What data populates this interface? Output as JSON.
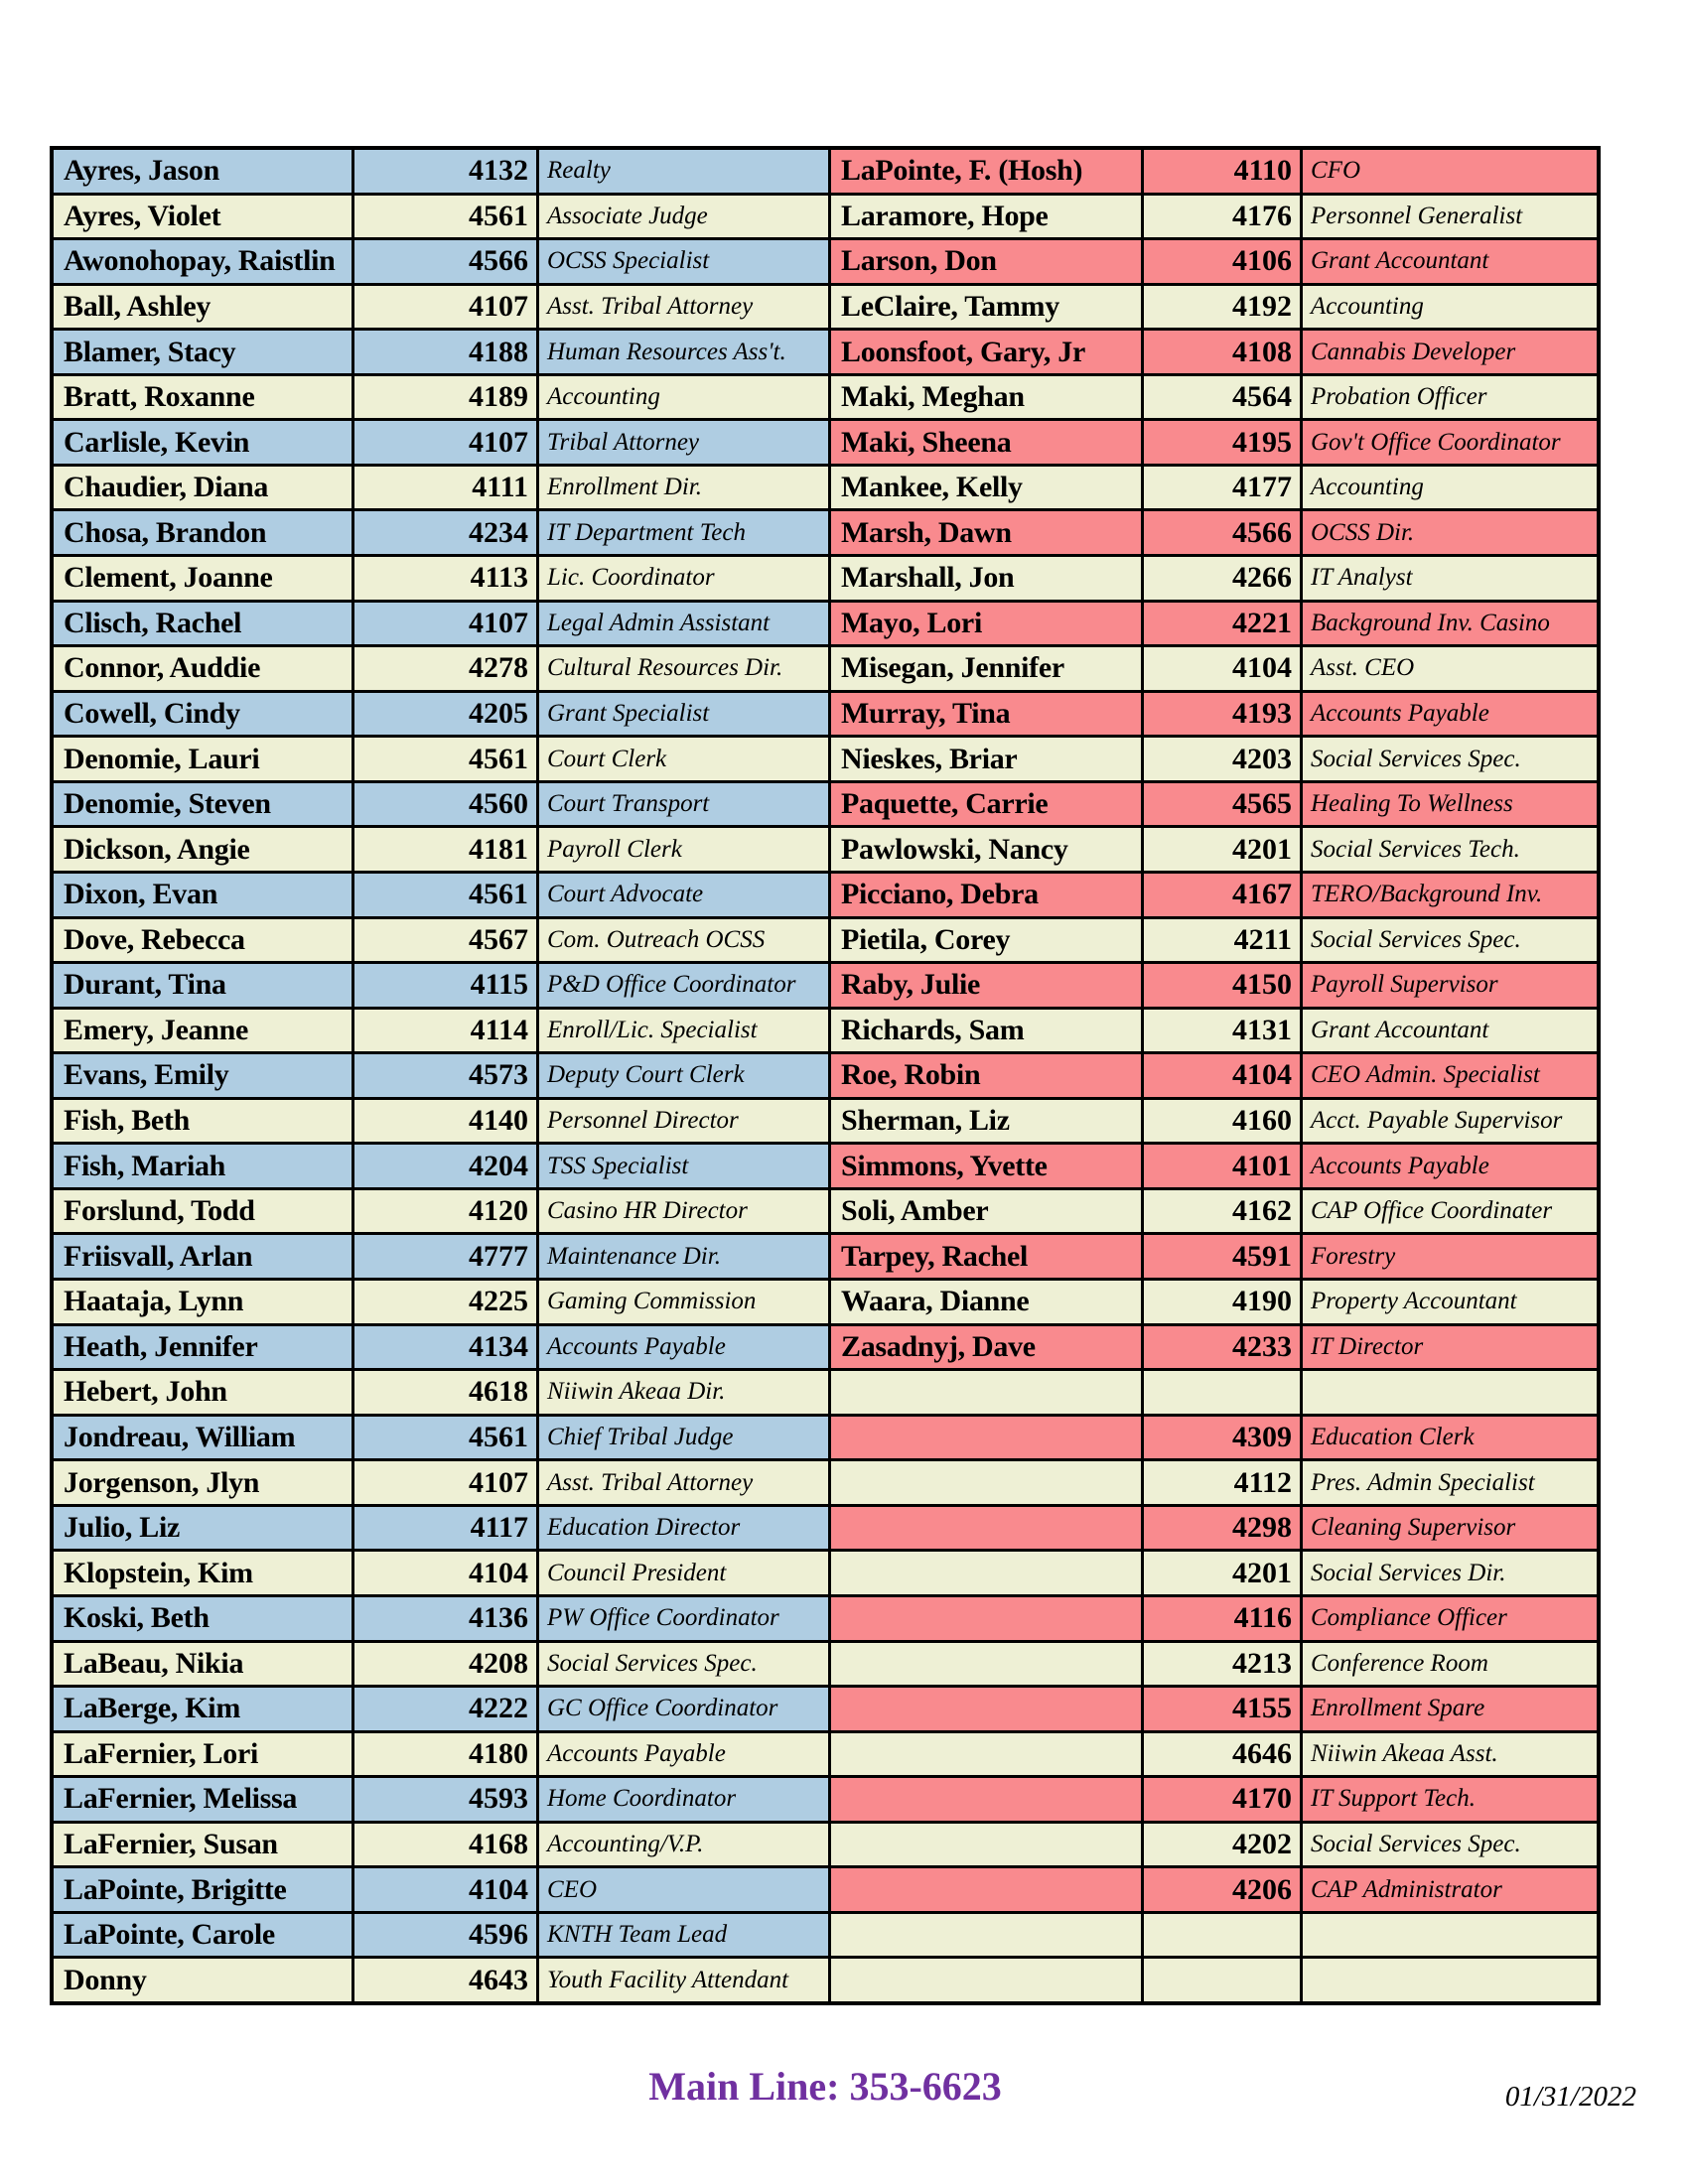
{
  "page": {
    "footer": {
      "main_line": "Main Line: 353-6623",
      "date": "01/31/2022"
    },
    "colors": {
      "blue": "#AFCDE2",
      "cream": "#EEF0D5",
      "pink": "#F98A8E",
      "border": "#000000",
      "main_line_text": "#7030A0"
    }
  },
  "directory": {
    "left_rows": [
      {
        "name": "Ayres, Jason",
        "ext": "4132",
        "title": "Realty",
        "color": "blue"
      },
      {
        "name": "Ayres, Violet",
        "ext": "4561",
        "title": "Associate Judge",
        "color": "cream"
      },
      {
        "name": "Awonohopay, Raistlin",
        "ext": "4566",
        "title": "OCSS Specialist",
        "color": "blue"
      },
      {
        "name": "Ball, Ashley",
        "ext": "4107",
        "title": "Asst. Tribal Attorney",
        "color": "cream"
      },
      {
        "name": "Blamer, Stacy",
        "ext": "4188",
        "title": "Human Resources Ass't.",
        "color": "blue"
      },
      {
        "name": "Bratt, Roxanne",
        "ext": "4189",
        "title": "Accounting",
        "color": "cream"
      },
      {
        "name": "Carlisle, Kevin",
        "ext": "4107",
        "title": "Tribal Attorney",
        "color": "blue"
      },
      {
        "name": "Chaudier, Diana",
        "ext": "4111",
        "title": "Enrollment Dir.",
        "color": "cream"
      },
      {
        "name": "Chosa, Brandon",
        "ext": "4234",
        "title": "IT Department Tech",
        "color": "blue"
      },
      {
        "name": "Clement, Joanne",
        "ext": "4113",
        "title": "Lic. Coordinator",
        "color": "cream"
      },
      {
        "name": "Clisch, Rachel",
        "ext": "4107",
        "title": "Legal Admin Assistant",
        "color": "blue"
      },
      {
        "name": "Connor, Auddie",
        "ext": "4278",
        "title": "Cultural Resources Dir.",
        "color": "cream"
      },
      {
        "name": "Cowell, Cindy",
        "ext": "4205",
        "title": "Grant Specialist",
        "color": "blue"
      },
      {
        "name": "Denomie, Lauri",
        "ext": "4561",
        "title": "Court Clerk",
        "color": "cream"
      },
      {
        "name": "Denomie, Steven",
        "ext": "4560",
        "title": "Court Transport",
        "color": "blue"
      },
      {
        "name": "Dickson, Angie",
        "ext": "4181",
        "title": "Payroll Clerk",
        "color": "cream"
      },
      {
        "name": "Dixon, Evan",
        "ext": "4561",
        "title": "Court Advocate",
        "color": "blue"
      },
      {
        "name": "Dove, Rebecca",
        "ext": "4567",
        "title": "Com. Outreach OCSS",
        "color": "cream"
      },
      {
        "name": "Durant, Tina",
        "ext": "4115",
        "title": "P&D Office Coordinator",
        "color": "blue"
      },
      {
        "name": "Emery, Jeanne",
        "ext": "4114",
        "title": "Enroll/Lic. Specialist",
        "color": "cream"
      },
      {
        "name": "Evans, Emily",
        "ext": "4573",
        "title": "Deputy Court Clerk",
        "color": "blue"
      },
      {
        "name": "Fish, Beth",
        "ext": "4140",
        "title": "Personnel Director",
        "color": "cream"
      },
      {
        "name": "Fish, Mariah",
        "ext": "4204",
        "title": "TSS Specialist",
        "color": "blue"
      },
      {
        "name": "Forslund, Todd",
        "ext": "4120",
        "title": "Casino HR Director",
        "color": "cream"
      },
      {
        "name": "Friisvall, Arlan",
        "ext": "4777",
        "title": "Maintenance Dir.",
        "color": "blue"
      },
      {
        "name": "Haataja, Lynn",
        "ext": "4225",
        "title": "Gaming Commission",
        "color": "cream"
      },
      {
        "name": "Heath, Jennifer",
        "ext": "4134",
        "title": "Accounts Payable",
        "color": "blue"
      },
      {
        "name": "Hebert, John",
        "ext": "4618",
        "title": "Niiwin Akeaa Dir.",
        "color": "cream"
      },
      {
        "name": "Jondreau, William",
        "ext": "4561",
        "title": "Chief Tribal Judge",
        "color": "blue"
      },
      {
        "name": "Jorgenson, Jlyn",
        "ext": "4107",
        "title": "Asst. Tribal Attorney",
        "color": "cream"
      },
      {
        "name": "Julio, Liz",
        "ext": "4117",
        "title": "Education Director",
        "color": "blue"
      },
      {
        "name": "Klopstein, Kim",
        "ext": "4104",
        "title": "Council President",
        "color": "cream"
      },
      {
        "name": "Koski, Beth",
        "ext": "4136",
        "title": "PW Office Coordinator",
        "color": "blue"
      },
      {
        "name": "LaBeau, Nikia",
        "ext": "4208",
        "title": "Social Services Spec.",
        "color": "cream"
      },
      {
        "name": "LaBerge, Kim",
        "ext": "4222",
        "title": "GC Office Coordinator",
        "color": "blue"
      },
      {
        "name": "LaFernier, Lori",
        "ext": "4180",
        "title": "Accounts Payable",
        "color": "cream"
      },
      {
        "name": "LaFernier, Melissa",
        "ext": "4593",
        "title": "Home Coordinator",
        "color": "blue"
      },
      {
        "name": "LaFernier, Susan",
        "ext": "4168",
        "title": "Accounting/V.P.",
        "color": "cream"
      },
      {
        "name": "LaPointe, Brigitte",
        "ext": "4104",
        "title": "CEO",
        "color": "blue"
      },
      {
        "name": "LaPointe, Carole",
        "ext": "4596",
        "title": "KNTH Team Lead",
        "color": "blue"
      },
      {
        "name": "Donny",
        "ext": "4643",
        "title": "Youth Facility Attendant",
        "color": "cream"
      }
    ],
    "right_rows": [
      {
        "name": "LaPointe, F. (Hosh)",
        "ext": "4110",
        "title": "CFO",
        "color": "pink"
      },
      {
        "name": "Laramore, Hope",
        "ext": "4176",
        "title": "Personnel Generalist",
        "color": "cream"
      },
      {
        "name": "Larson, Don",
        "ext": "4106",
        "title": "Grant Accountant",
        "color": "pink"
      },
      {
        "name": "LeClaire, Tammy",
        "ext": "4192",
        "title": "Accounting",
        "color": "cream"
      },
      {
        "name": "Loonsfoot, Gary, Jr",
        "ext": "4108",
        "title": "Cannabis Developer",
        "color": "pink"
      },
      {
        "name": "Maki, Meghan",
        "ext": "4564",
        "title": "Probation Officer",
        "color": "cream"
      },
      {
        "name": "Maki, Sheena",
        "ext": "4195",
        "title": "Gov't Office Coordinator",
        "color": "pink"
      },
      {
        "name": "Mankee, Kelly",
        "ext": "4177",
        "title": "Accounting",
        "color": "cream"
      },
      {
        "name": "Marsh, Dawn",
        "ext": "4566",
        "title": "OCSS Dir.",
        "color": "pink"
      },
      {
        "name": "Marshall, Jon",
        "ext": "4266",
        "title": "IT Analyst",
        "color": "cream"
      },
      {
        "name": "Mayo, Lori",
        "ext": "4221",
        "title": "Background Inv. Casino",
        "color": "pink"
      },
      {
        "name": "Misegan, Jennifer",
        "ext": "4104",
        "title": "Asst. CEO",
        "color": "cream"
      },
      {
        "name": "Murray, Tina",
        "ext": "4193",
        "title": "Accounts Payable",
        "color": "pink"
      },
      {
        "name": "Nieskes, Briar",
        "ext": "4203",
        "title": "Social Services Spec.",
        "color": "cream"
      },
      {
        "name": "Paquette, Carrie",
        "ext": "4565",
        "title": "Healing To Wellness",
        "color": "pink"
      },
      {
        "name": "Pawlowski, Nancy",
        "ext": "4201",
        "title": "Social Services Tech.",
        "color": "cream"
      },
      {
        "name": "Picciano, Debra",
        "ext": "4167",
        "title": "TERO/Background Inv.",
        "color": "pink"
      },
      {
        "name": "Pietila, Corey",
        "ext": "4211",
        "title": "Social Services Spec.",
        "color": "cream"
      },
      {
        "name": "Raby, Julie",
        "ext": "4150",
        "title": "Payroll Supervisor",
        "color": "pink"
      },
      {
        "name": "Richards, Sam",
        "ext": "4131",
        "title": "Grant Accountant",
        "color": "cream"
      },
      {
        "name": "Roe, Robin",
        "ext": "4104",
        "title": "CEO Admin. Specialist",
        "color": "pink"
      },
      {
        "name": "Sherman, Liz",
        "ext": "4160",
        "title": "Acct. Payable Supervisor",
        "color": "cream"
      },
      {
        "name": "Simmons, Yvette",
        "ext": "4101",
        "title": "Accounts Payable",
        "color": "pink"
      },
      {
        "name": "Soli, Amber",
        "ext": "4162",
        "title": "CAP Office Coordinater",
        "color": "cream"
      },
      {
        "name": "Tarpey, Rachel",
        "ext": "4591",
        "title": "Forestry",
        "color": "pink"
      },
      {
        "name": "Waara, Dianne",
        "ext": "4190",
        "title": "Property Accountant",
        "color": "cream"
      },
      {
        "name": "Zasadnyj, Dave",
        "ext": "4233",
        "title": "IT Director",
        "color": "pink"
      },
      {
        "name": "",
        "ext": "",
        "title": "",
        "color": "cream"
      },
      {
        "name": "",
        "ext": "4309",
        "title": "Education Clerk",
        "color": "pink"
      },
      {
        "name": "",
        "ext": "4112",
        "title": "Pres. Admin Specialist",
        "color": "cream"
      },
      {
        "name": "",
        "ext": "4298",
        "title": "Cleaning Supervisor",
        "color": "pink"
      },
      {
        "name": "",
        "ext": "4201",
        "title": "Social Services Dir.",
        "color": "cream"
      },
      {
        "name": "",
        "ext": "4116",
        "title": "Compliance Officer",
        "color": "pink"
      },
      {
        "name": "",
        "ext": "4213",
        "title": "Conference Room",
        "color": "cream"
      },
      {
        "name": "",
        "ext": "4155",
        "title": "Enrollment Spare",
        "color": "pink"
      },
      {
        "name": "",
        "ext": "4646",
        "title": "Niiwin Akeaa Asst.",
        "color": "cream"
      },
      {
        "name": "",
        "ext": "4170",
        "title": "IT Support Tech.",
        "color": "pink"
      },
      {
        "name": "",
        "ext": "4202",
        "title": "Social Services Spec.",
        "color": "cream"
      },
      {
        "name": "",
        "ext": "4206",
        "title": "CAP Administrator",
        "color": "pink"
      },
      {
        "name": "",
        "ext": "",
        "title": "",
        "color": "cream"
      },
      {
        "name": "",
        "ext": "",
        "title": "",
        "color": "cream"
      }
    ]
  }
}
